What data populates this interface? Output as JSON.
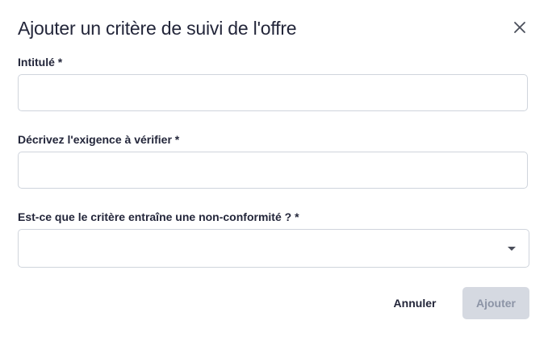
{
  "dialog": {
    "title": "Ajouter un critère de suivi de l'offre",
    "close_icon": "close-icon"
  },
  "fields": {
    "title_label": "Intitulé *",
    "title_value": "",
    "requirement_label": "Décrivez l'exigence à vérifier *",
    "requirement_value": "",
    "nonconformity_label": "Est-ce que le critère entraîne une non-conformité ? *",
    "nonconformity_value": ""
  },
  "actions": {
    "cancel_label": "Annuler",
    "add_label": "Ajouter",
    "add_disabled_look": true
  }
}
